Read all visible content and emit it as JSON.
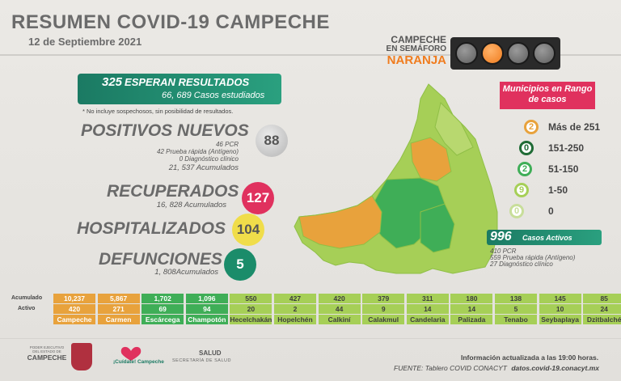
{
  "header": {
    "title": "RESUMEN COVID-19 CAMPECHE",
    "date": "12 de Septiembre 2021"
  },
  "semaforo": {
    "line1": "CAMPECHE",
    "line2": "EN SEMÁFORO",
    "line3": "NARANJA",
    "active_color": "#f07c1e"
  },
  "esperan": {
    "number": "325",
    "label": "ESPERAN RESULTADOS",
    "estudiados": "66, 689 Casos estudiados"
  },
  "note": "* No incluye sospechosos, sin posibilidad de resultados.",
  "positivos": {
    "title": "POSITIVOS NUEVOS",
    "pcr": "46 PCR",
    "antigeno": "42 Prueba rápida (Antígeno)",
    "clinico": "0 Diagnóstico clínico",
    "acumulados": "21, 537 Acumulados",
    "value": "88"
  },
  "recuperados": {
    "title": "RECUPERADOS",
    "acumulados": "16, 828 Acumulados",
    "value": "127"
  },
  "hospitalizados": {
    "title": "HOSPITALIZADOS",
    "value": "104"
  },
  "defunciones": {
    "title": "DEFUNCIONES",
    "acumulados": "1, 808Acumulados",
    "value": "5"
  },
  "legend": {
    "title": "Municipios en Rango de casos",
    "items": [
      {
        "count": "2",
        "range": "Más de 251",
        "color": "#e8a23c"
      },
      {
        "count": "0",
        "range": "151-250",
        "color": "#1f6b35"
      },
      {
        "count": "2",
        "range": "51-150",
        "color": "#3fae57"
      },
      {
        "count": "9",
        "range": "1-50",
        "color": "#a6cf57"
      },
      {
        "count": "0",
        "range": "0",
        "color": "#c8de9a"
      }
    ]
  },
  "activos": {
    "number": "996",
    "label": "Casos Activos",
    "pcr": "410 PCR",
    "antigeno": "559 Prueba rápida (Antígeno)",
    "clinico": "27 Diagnóstico clínico"
  },
  "table": {
    "row_labels": [
      "Acumulado",
      "Activo"
    ],
    "municipios": [
      {
        "name": "Campeche",
        "acum": "10,237",
        "activo": "420",
        "color": "#e8a23c"
      },
      {
        "name": "Carmen",
        "acum": "5,867",
        "activo": "271",
        "color": "#e8a23c"
      },
      {
        "name": "Escárcega",
        "acum": "1,702",
        "activo": "69",
        "color": "#3fae57"
      },
      {
        "name": "Champotón",
        "acum": "1,096",
        "activo": "94",
        "color": "#3fae57"
      },
      {
        "name": "Hecelchakán",
        "acum": "550",
        "activo": "20",
        "color": "#a6cf57"
      },
      {
        "name": "Hopelchén",
        "acum": "427",
        "activo": "2",
        "color": "#a6cf57"
      },
      {
        "name": "Calkiní",
        "acum": "420",
        "activo": "44",
        "color": "#a6cf57"
      },
      {
        "name": "Calakmul",
        "acum": "379",
        "activo": "9",
        "color": "#a6cf57"
      },
      {
        "name": "Candelaria",
        "acum": "311",
        "activo": "14",
        "color": "#a6cf57"
      },
      {
        "name": "Palizada",
        "acum": "180",
        "activo": "14",
        "color": "#a6cf57"
      },
      {
        "name": "Tenabo",
        "acum": "138",
        "activo": "5",
        "color": "#a6cf57"
      },
      {
        "name": "Seybaplaya",
        "acum": "145",
        "activo": "10",
        "color": "#a6cf57"
      },
      {
        "name": "Dzitbalché",
        "acum": "85",
        "activo": "24",
        "color": "#a6cf57"
      }
    ]
  },
  "footer": {
    "logo1_top": "PODER EJECUTIVO",
    "logo1_mid": "DEL ESTADO DE",
    "logo1_name": "CAMPECHE",
    "logo2": "¡Cuídate! Campeche",
    "salud": "SALUD",
    "salud_sub": "SECRETARÍA DE SALUD",
    "updated": "Información actualizada a las 19:00 horas.",
    "fuente_label": "FUENTE: Tablero COVID CONACYT",
    "fuente_url": "datos.covid-19.conacyt.mx"
  }
}
